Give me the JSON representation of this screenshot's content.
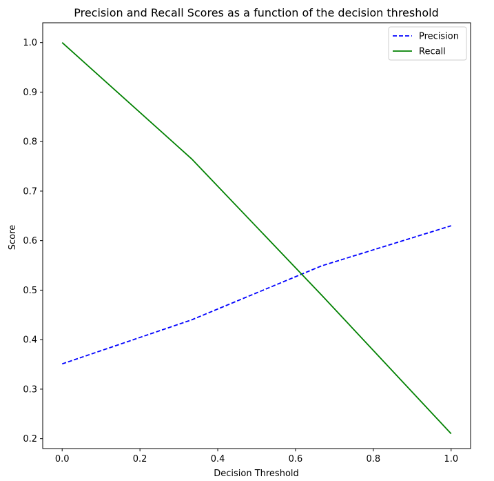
{
  "chart_data": {
    "type": "line",
    "title": "Precision and Recall Scores as a function of the decision threshold",
    "xlabel": "Decision Threshold",
    "ylabel": "Score",
    "xlim": [
      -0.05,
      1.05
    ],
    "ylim": [
      0.18,
      1.04
    ],
    "x_ticks": [
      0.0,
      0.2,
      0.4,
      0.6,
      0.8,
      1.0
    ],
    "x_tick_labels": [
      "0.0",
      "0.2",
      "0.4",
      "0.6",
      "0.8",
      "1.0"
    ],
    "y_ticks": [
      0.2,
      0.3,
      0.4,
      0.5,
      0.6,
      0.7,
      0.8,
      0.9,
      1.0
    ],
    "y_tick_labels": [
      "0.2",
      "0.3",
      "0.4",
      "0.5",
      "0.6",
      "0.7",
      "0.8",
      "0.9",
      "1.0"
    ],
    "grid": false,
    "legend_position": "top-right",
    "series": [
      {
        "name": "Precision",
        "color": "#0000ff",
        "style": "dashed",
        "x": [
          0.0,
          0.333,
          0.667,
          1.0
        ],
        "y": [
          0.351,
          0.44,
          0.549,
          0.63
        ]
      },
      {
        "name": "Recall",
        "color": "#008000",
        "style": "solid",
        "x": [
          0.0,
          0.333,
          0.667,
          1.0
        ],
        "y": [
          1.0,
          0.765,
          0.49,
          0.21
        ]
      }
    ]
  }
}
